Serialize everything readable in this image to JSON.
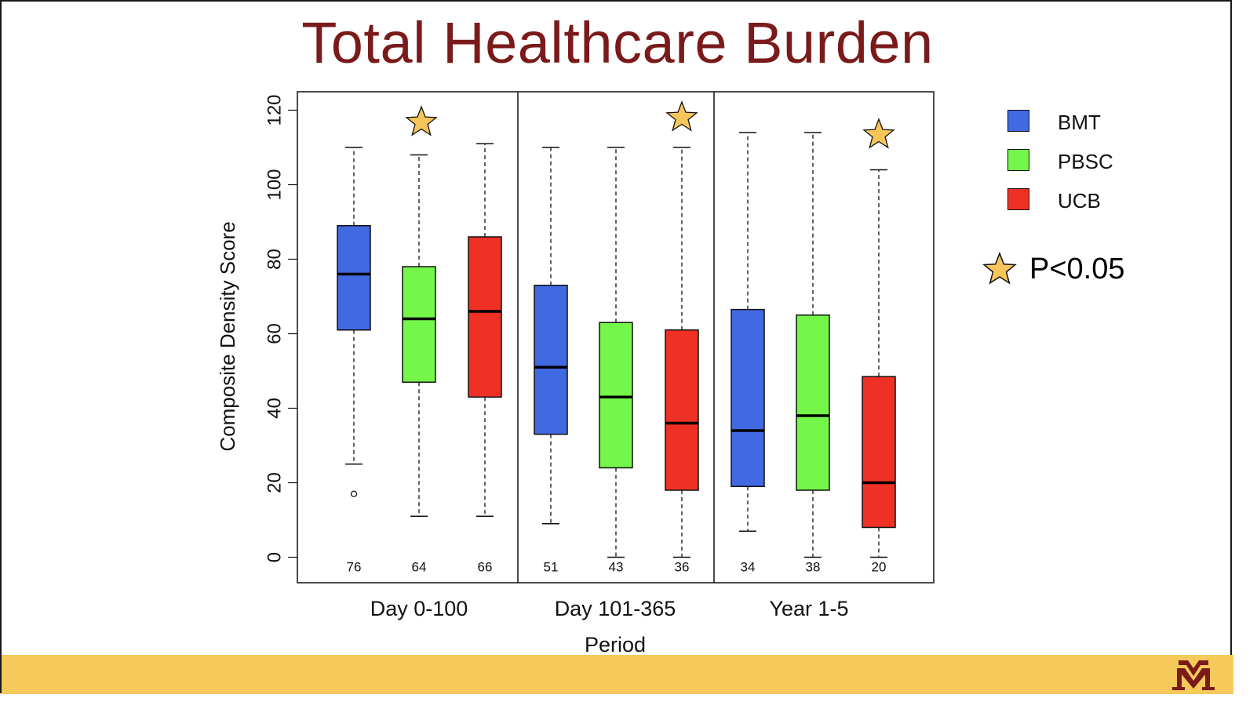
{
  "slide": {
    "title": "Total Healthcare Burden"
  },
  "chart_data": {
    "type": "box",
    "xlabel": "Period",
    "ylabel": "Composite Density Score",
    "ylim": [
      -7,
      126
    ],
    "yticks": [
      0,
      20,
      40,
      60,
      80,
      100,
      120
    ],
    "legend_position": "right",
    "significance_note": "P<0.05",
    "series_colors": {
      "BMT": "#4169e1",
      "PBSC": "#74f74a",
      "UCB": "#ee3124"
    },
    "panels": [
      {
        "label": "Day 0-100",
        "significant": true,
        "boxes": [
          {
            "group": "BMT",
            "whisker_low": 25,
            "q1": 61,
            "median": 76,
            "q3": 89,
            "whisker_high": 110,
            "outliers": [
              17
            ],
            "count_label": "76"
          },
          {
            "group": "PBSC",
            "whisker_low": 11,
            "q1": 47,
            "median": 64,
            "q3": 78,
            "whisker_high": 108,
            "outliers": [],
            "count_label": "64"
          },
          {
            "group": "UCB",
            "whisker_low": 11,
            "q1": 43,
            "median": 66,
            "q3": 86,
            "whisker_high": 111,
            "outliers": [],
            "count_label": "66"
          }
        ]
      },
      {
        "label": "Day 101-365",
        "significant": true,
        "boxes": [
          {
            "group": "BMT",
            "whisker_low": 9,
            "q1": 33,
            "median": 51,
            "q3": 73,
            "whisker_high": 110,
            "outliers": [],
            "count_label": "51"
          },
          {
            "group": "PBSC",
            "whisker_low": 0,
            "q1": 24,
            "median": 43,
            "q3": 63,
            "whisker_high": 110,
            "outliers": [],
            "count_label": "43"
          },
          {
            "group": "UCB",
            "whisker_low": 0,
            "q1": 18,
            "median": 36,
            "q3": 61,
            "whisker_high": 110,
            "outliers": [],
            "count_label": "36"
          }
        ]
      },
      {
        "label": "Year 1-5",
        "significant": true,
        "boxes": [
          {
            "group": "BMT",
            "whisker_low": 7,
            "q1": 19,
            "median": 34,
            "q3": 66.5,
            "whisker_high": 114,
            "outliers": [],
            "count_label": "34"
          },
          {
            "group": "PBSC",
            "whisker_low": 0,
            "q1": 18,
            "median": 38,
            "q3": 65,
            "whisker_high": 114,
            "outliers": [],
            "count_label": "38"
          },
          {
            "group": "UCB",
            "whisker_low": 0,
            "q1": 8,
            "median": 20,
            "q3": 48.5,
            "whisker_high": 104,
            "outliers": [],
            "count_label": "20"
          }
        ]
      }
    ]
  },
  "legend": {
    "items": [
      {
        "label": "BMT",
        "color": "#4169e1"
      },
      {
        "label": "PBSC",
        "color": "#74f74a"
      },
      {
        "label": "UCB",
        "color": "#ee3124"
      }
    ],
    "star_label": "P<0.05",
    "star_color": "#f7c55a"
  },
  "footer": {
    "band_color": "#f5c95a",
    "logo_icon": "university-m-logo-icon",
    "logo_color": "#7a1a1a"
  }
}
